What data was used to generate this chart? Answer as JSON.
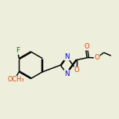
{
  "bg_color": "#eeeedd",
  "bond_color": "#000000",
  "N_color": "#0000dd",
  "O_color": "#dd4400",
  "F_color": "#007700",
  "font_size": 6.2,
  "bold_font_size": 6.2,
  "line_width": 1.05,
  "fig_size": [
    1.52,
    1.52
  ],
  "dpi": 100,
  "xlim": [
    0.0,
    9.5
  ],
  "ylim": [
    2.8,
    8.8
  ]
}
